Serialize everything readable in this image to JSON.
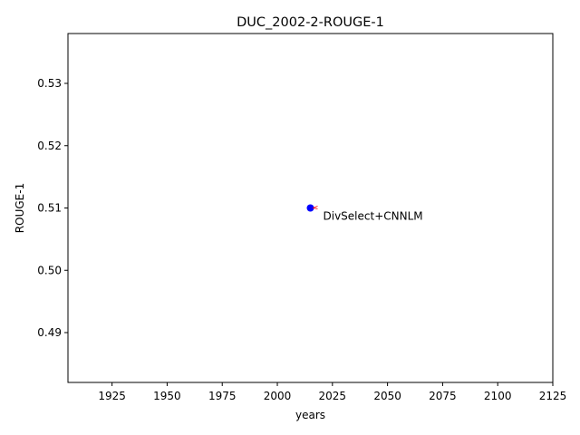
{
  "chart_data": {
    "type": "scatter",
    "title": "DUC_2002-2-ROUGE-1",
    "xlabel": "years",
    "ylabel": "ROUGE-1",
    "xlim": [
      1905,
      2125
    ],
    "ylim": [
      0.482,
      0.538
    ],
    "xticks": [
      1925,
      1950,
      1975,
      2000,
      2025,
      2050,
      2075,
      2100,
      2125
    ],
    "xtick_labels": [
      "1925",
      "1950",
      "1975",
      "2000",
      "2025",
      "2050",
      "2075",
      "2100",
      "2125"
    ],
    "yticks": [
      0.49,
      0.5,
      0.51,
      0.52,
      0.53
    ],
    "ytick_labels": [
      "0.49",
      "0.50",
      "0.51",
      "0.52",
      "0.53"
    ],
    "grid": false,
    "points": [
      {
        "x": 2015,
        "y": 0.51,
        "label": "DivSelect+CNNLM",
        "color": "#0000ff"
      }
    ],
    "annotation_arrow_color": "#ff0000"
  }
}
